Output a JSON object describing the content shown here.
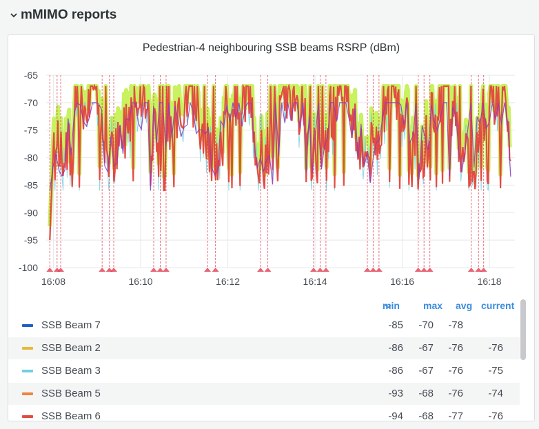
{
  "row": {
    "title": "mMIMO reports",
    "collapse_icon": "chevron-down-icon"
  },
  "panel": {
    "title": "Pedestrian-4 neighbouring SSB beams RSRP (dBm)"
  },
  "legend": {
    "headers": {
      "min": "min",
      "max": "max",
      "avg": "avg",
      "current": "current"
    },
    "sort_icon": "chevron-down-icon",
    "rows": [
      {
        "name": "SSB Beam 7",
        "color": "#1f60c4",
        "min": "-85",
        "max": "-70",
        "avg": "-78",
        "current": ""
      },
      {
        "name": "SSB Beam 2",
        "color": "#eab839",
        "min": "-86",
        "max": "-67",
        "avg": "-76",
        "current": "-76"
      },
      {
        "name": "SSB Beam 3",
        "color": "#6ed0e0",
        "min": "-86",
        "max": "-67",
        "avg": "-76",
        "current": "-75"
      },
      {
        "name": "SSB Beam 5",
        "color": "#ef843c",
        "min": "-93",
        "max": "-68",
        "avg": "-76",
        "current": "-74"
      },
      {
        "name": "SSB Beam 6",
        "color": "#e24d42",
        "min": "-94",
        "max": "-68",
        "avg": "-77",
        "current": "-76"
      }
    ]
  },
  "chart_data": {
    "type": "line",
    "title": "Pedestrian-4 neighbouring SSB beams RSRP (dBm)",
    "xlabel": "",
    "ylabel": "",
    "ylim": [
      -100,
      -65
    ],
    "y_ticks": [
      "-65",
      "-70",
      "-75",
      "-80",
      "-85",
      "-90",
      "-95",
      "-100"
    ],
    "x_ticks": [
      "16:08",
      "16:10",
      "16:12",
      "16:14",
      "16:16",
      "16:18"
    ],
    "xlim": [
      "16:07:50",
      "16:18:35"
    ],
    "grid": true,
    "annotation_times": [
      "16:07:55",
      "16:08:05",
      "16:08:10",
      "16:09:07",
      "16:09:17",
      "16:09:23",
      "16:10:18",
      "16:10:27",
      "16:10:35",
      "16:11:32",
      "16:11:43",
      "16:12:45",
      "16:12:55",
      "16:13:58",
      "16:14:07",
      "16:14:15",
      "16:15:12",
      "16:15:20",
      "16:15:28",
      "16:16:22",
      "16:16:30",
      "16:16:38",
      "16:17:35",
      "16:17:45",
      "16:17:52"
    ],
    "annotation_color": "#e02f44",
    "series_colors": {
      "highlight": "#c8f25e",
      "beam_main": "#e24d42",
      "beam_secondary": "#8f3bb8",
      "beam_light": "#6ed0e0"
    }
  }
}
